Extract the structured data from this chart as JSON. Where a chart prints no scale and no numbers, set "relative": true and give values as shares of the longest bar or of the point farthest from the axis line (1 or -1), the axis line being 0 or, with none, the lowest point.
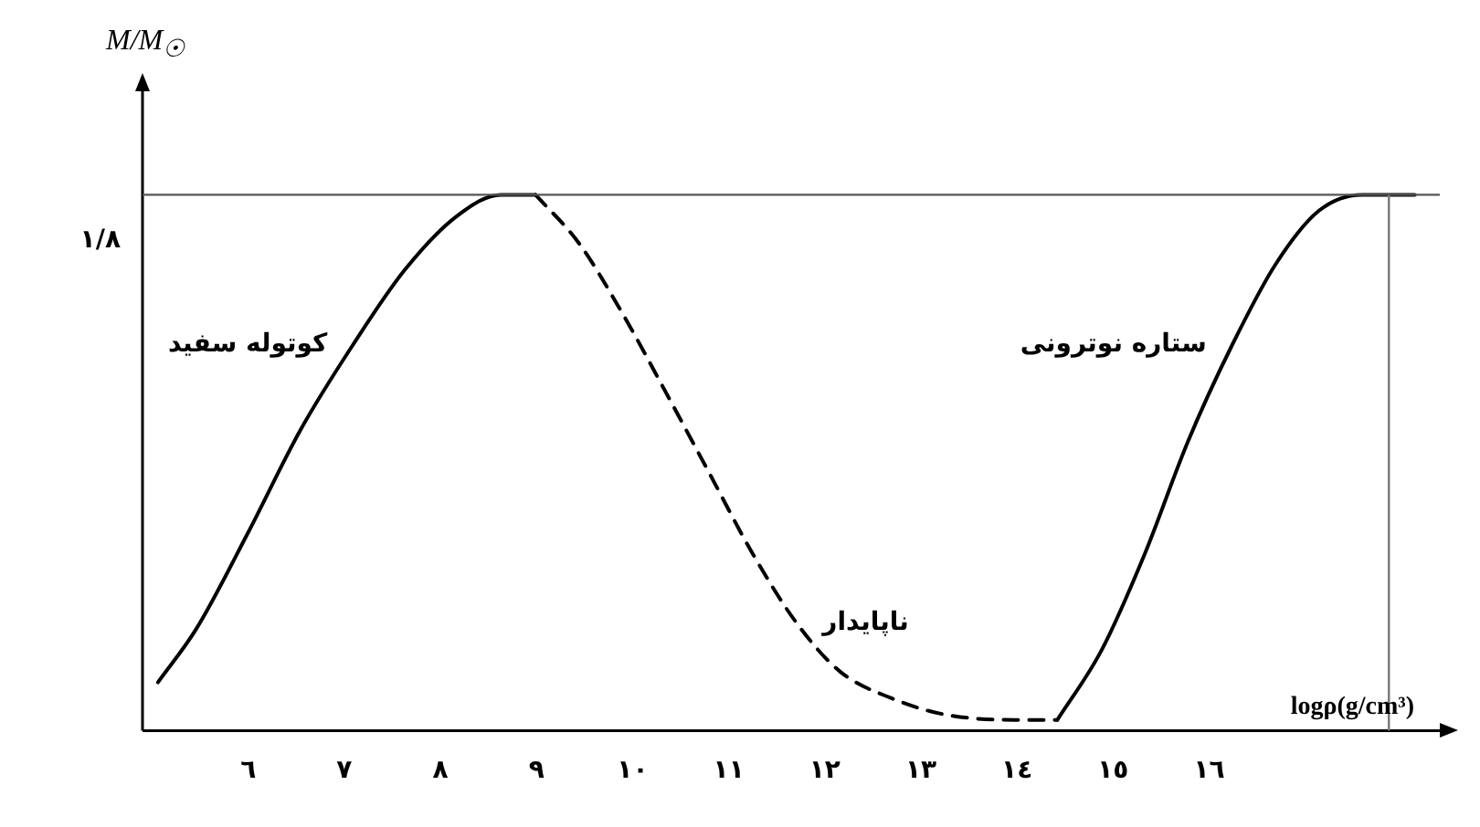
{
  "chart_data": {
    "type": "line",
    "relative": true,
    "xlabel": "logρ(g/cm³)",
    "ylabel": "M/M$_{☉}$",
    "xlim": [
      4.9,
      18.4
    ],
    "xticks": [
      {
        "value": 6,
        "label": "٦"
      },
      {
        "value": 7,
        "label": "٧"
      },
      {
        "value": 8,
        "label": "٨"
      },
      {
        "value": 9,
        "label": "٩"
      },
      {
        "value": 10,
        "label": "١٠"
      },
      {
        "value": 11,
        "label": "١١"
      },
      {
        "value": 12,
        "label": "١٢"
      },
      {
        "value": 13,
        "label": "١٣"
      },
      {
        "value": 14,
        "label": "١٤"
      },
      {
        "value": 15,
        "label": "١٥"
      },
      {
        "value": 16,
        "label": "١٦"
      }
    ],
    "grid": false,
    "legend": false,
    "marker": "none",
    "series": [
      {
        "name": "کوتوله سفید",
        "color": "#000000",
        "line_style": "solid",
        "x": [
          5.06,
          5.46,
          6,
          6.54,
          7.09,
          7.63,
          8.17,
          8.63,
          8.99
        ],
        "values": [
          0.09,
          0.19,
          0.37,
          0.56,
          0.72,
          0.86,
          0.96,
          1,
          1
        ]
      },
      {
        "name": "ناپایدار",
        "color": "#000000",
        "line_style": "dashed",
        "x": [
          8.99,
          9.44,
          9.89,
          10.35,
          10.8,
          11.25,
          11.71,
          12.16,
          12.7,
          13.25,
          13.97,
          14.42
        ],
        "values": [
          1,
          0.91,
          0.78,
          0.63,
          0.48,
          0.33,
          0.2,
          0.11,
          0.06,
          0.03,
          0.02,
          0.02
        ]
      },
      {
        "name": "ستاره نوترونی",
        "color": "#000000",
        "line_style": "solid",
        "x": [
          14.42,
          14.88,
          15.33,
          15.78,
          16.24,
          16.69,
          17.14,
          17.59,
          18.14
        ],
        "values": [
          0.02,
          0.15,
          0.33,
          0.54,
          0.72,
          0.87,
          0.97,
          1,
          1
        ]
      }
    ],
    "ref_lines": [
      {
        "axis": "y",
        "value": 1,
        "label": "١/٨",
        "color": "#555555"
      },
      {
        "axis": "x",
        "value": 17.87,
        "color": "#777777"
      }
    ]
  }
}
